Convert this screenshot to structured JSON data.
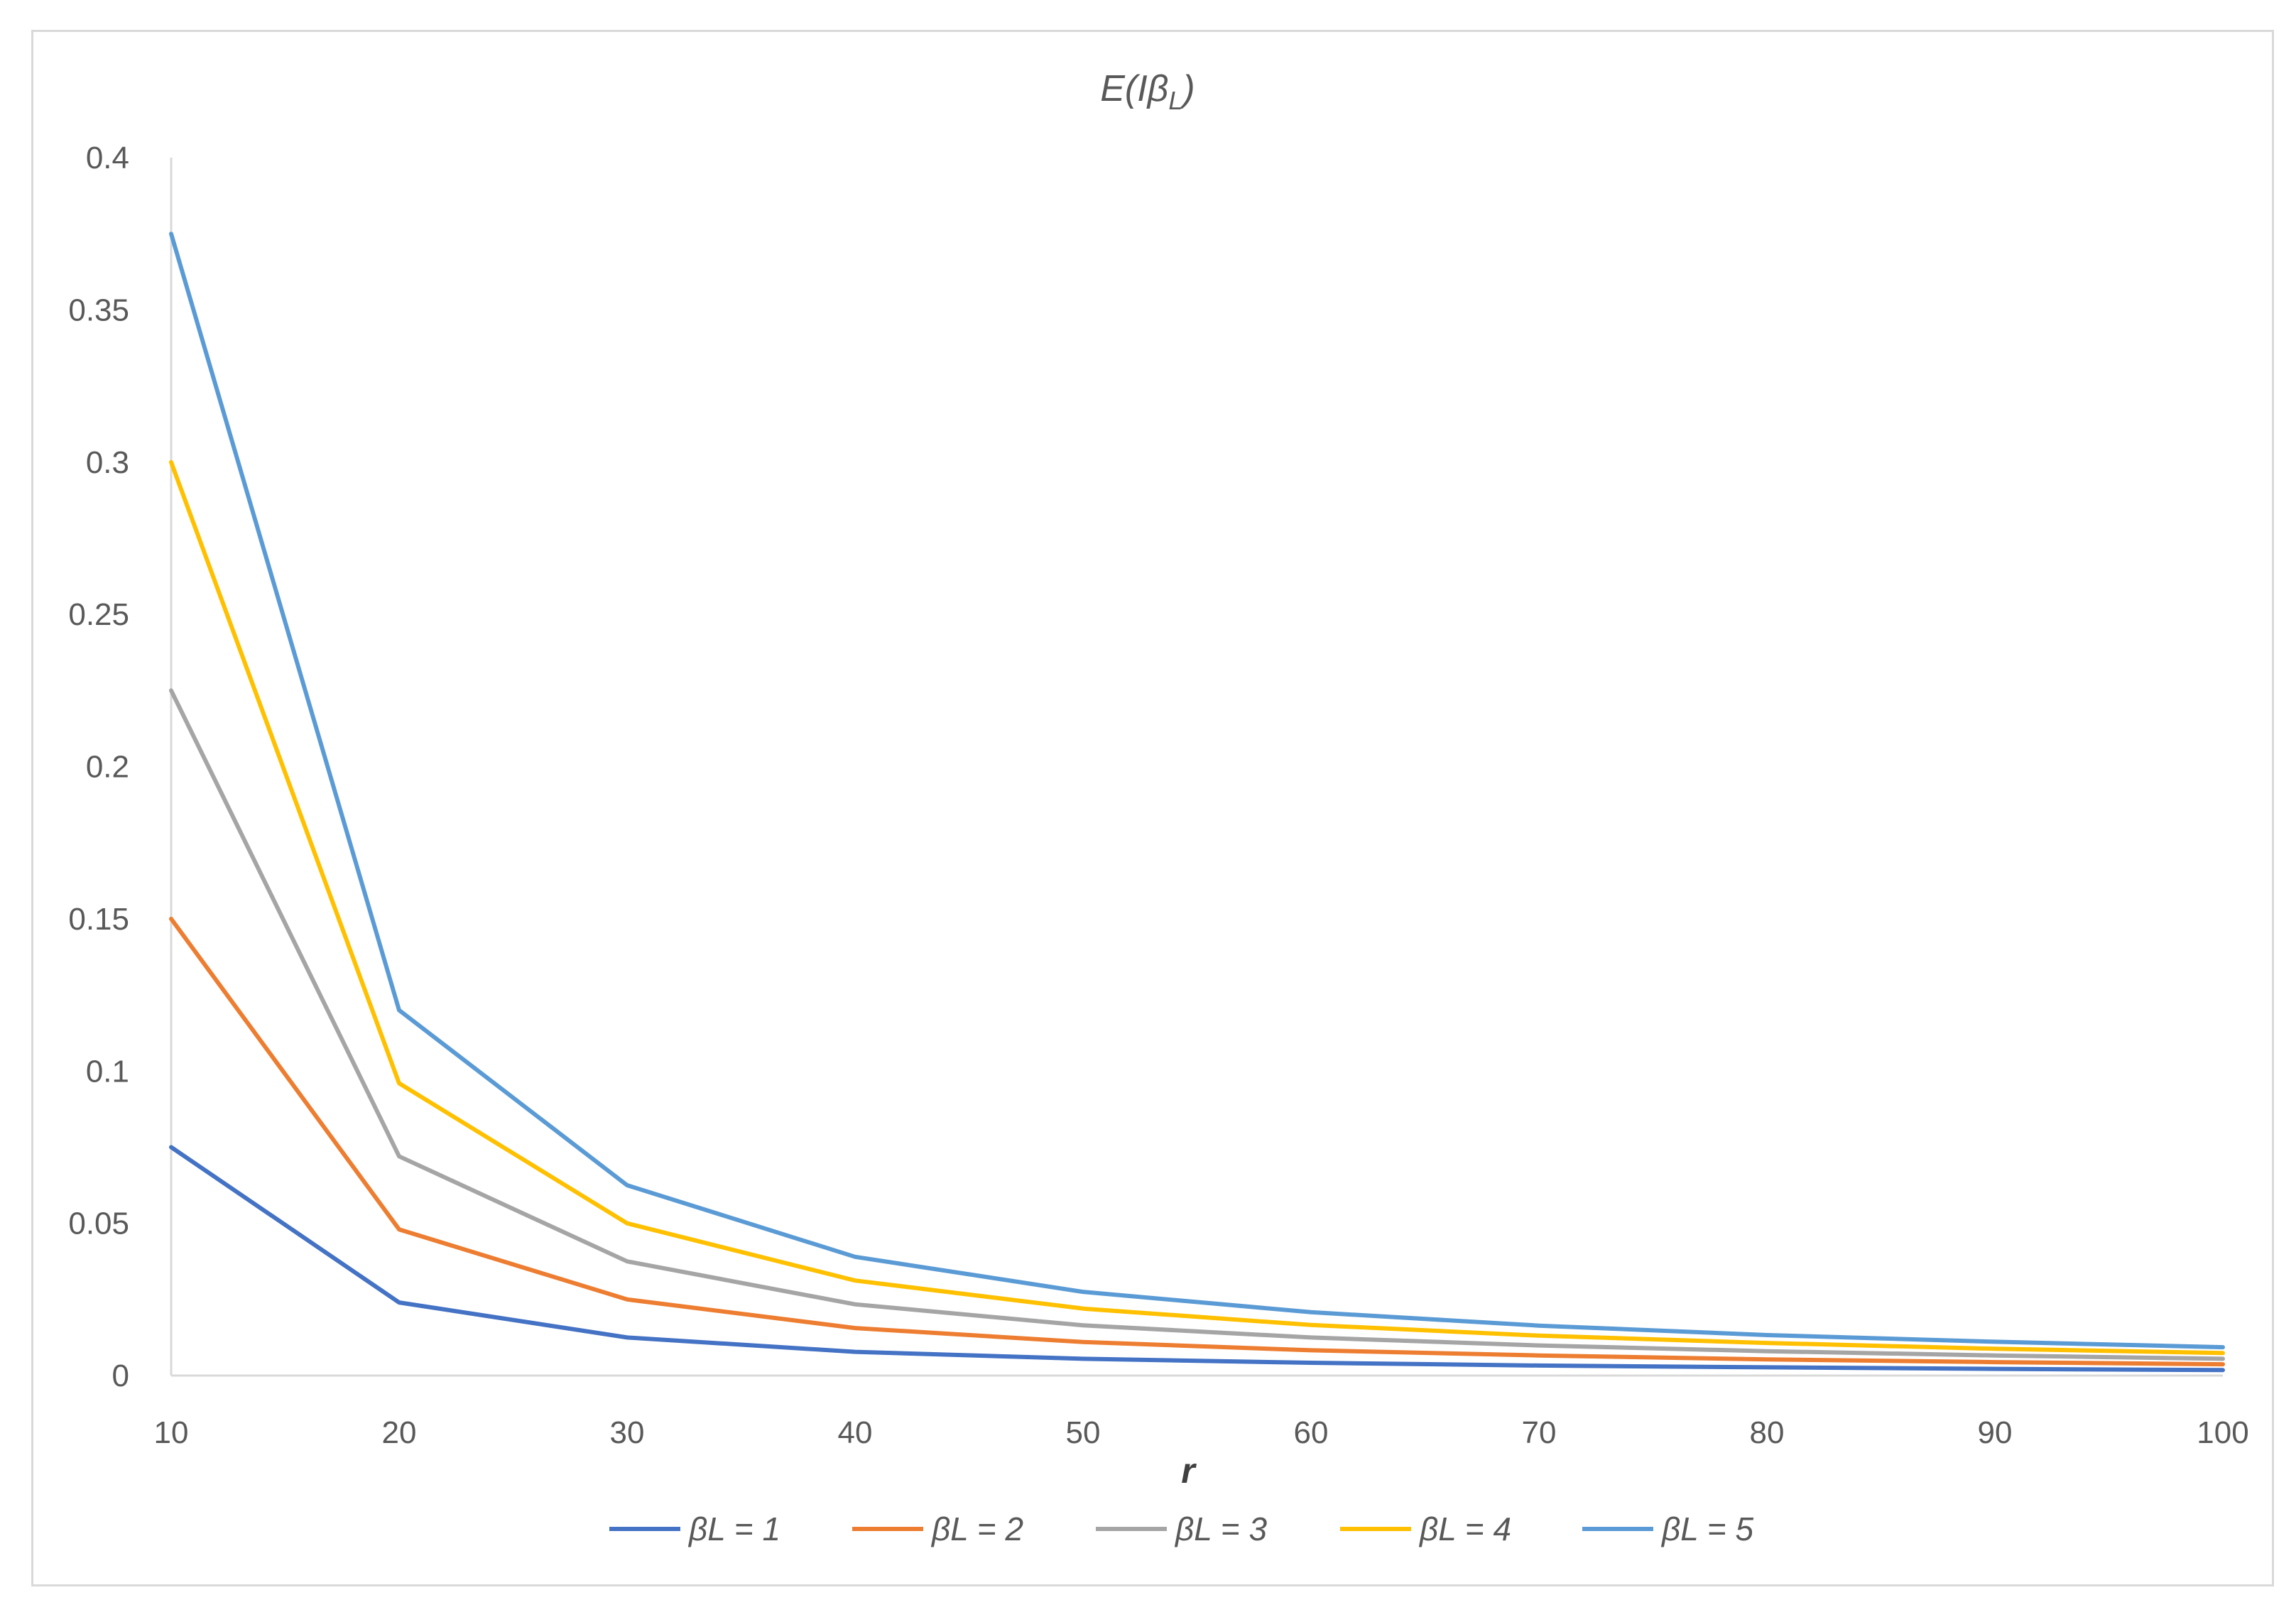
{
  "chart_data": {
    "type": "line",
    "title": "E(IβL)",
    "title_main": "E(Iβ",
    "title_sub": "L",
    "title_close": ")",
    "xlabel": "r",
    "ylabel": "",
    "x": [
      10,
      20,
      30,
      40,
      50,
      60,
      70,
      80,
      90,
      100
    ],
    "xlim": [
      10,
      100
    ],
    "ylim": [
      0,
      0.4
    ],
    "x_ticks": [
      "10",
      "20",
      "30",
      "40",
      "50",
      "60",
      "70",
      "80",
      "90",
      "100"
    ],
    "y_ticks": [
      "0",
      "0.05",
      "0.1",
      "0.15",
      "0.2",
      "0.25",
      "0.3",
      "0.35",
      "0.4"
    ],
    "y_tick_values": [
      0,
      0.05,
      0.1,
      0.15,
      0.2,
      0.25,
      0.3,
      0.35,
      0.4
    ],
    "grid": false,
    "legend_position": "bottom",
    "series": [
      {
        "name": "βL = 1",
        "color": "#4472c4",
        "values": [
          0.075,
          0.024,
          0.0125,
          0.0078,
          0.0055,
          0.0042,
          0.0033,
          0.0027,
          0.0022,
          0.0018
        ]
      },
      {
        "name": "βL = 2",
        "color": "#ed7d31",
        "values": [
          0.15,
          0.048,
          0.025,
          0.0156,
          0.011,
          0.0083,
          0.0066,
          0.0053,
          0.0044,
          0.0037
        ]
      },
      {
        "name": "βL = 3",
        "color": "#a5a5a5",
        "values": [
          0.225,
          0.072,
          0.0375,
          0.0234,
          0.0165,
          0.0125,
          0.0099,
          0.008,
          0.0066,
          0.0055
        ]
      },
      {
        "name": "βL = 4",
        "color": "#ffc000",
        "values": [
          0.3,
          0.096,
          0.05,
          0.0312,
          0.022,
          0.0166,
          0.0131,
          0.0107,
          0.0088,
          0.0074
        ]
      },
      {
        "name": "βL = 5",
        "color": "#5b9bd5",
        "values": [
          0.375,
          0.12,
          0.0625,
          0.039,
          0.0275,
          0.0208,
          0.0164,
          0.0133,
          0.0111,
          0.0093
        ]
      }
    ]
  }
}
